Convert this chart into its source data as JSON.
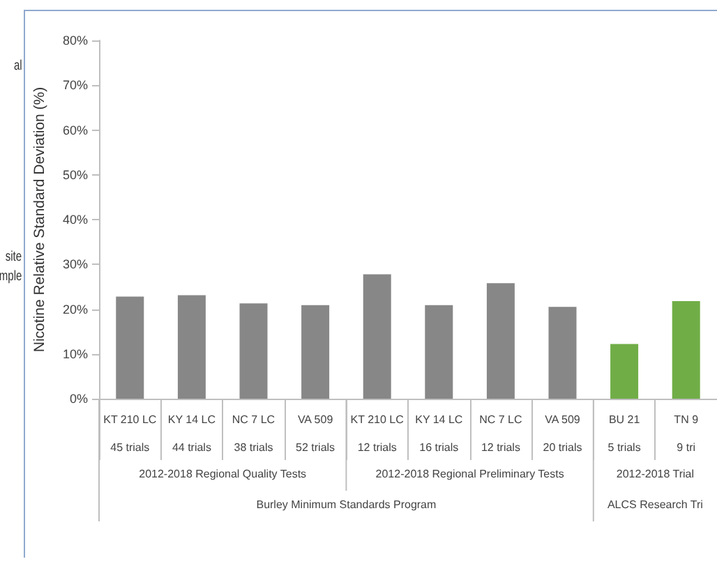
{
  "chart_data": {
    "type": "bar",
    "ylabel": "Nicotine Relative Standard Deviation (%)",
    "categories": [
      "KT 210 LC\n\n45 trials",
      "KY 14 LC\n\n44 trials",
      "NC 7 LC\n\n38 trials",
      "VA 509\n\n52 trials",
      "KT 210 LC\n\n12 trials",
      "KY 14 LC\n\n16 trials",
      "NC 7 LC\n\n12 trials",
      "VA 509\n\n20 trials",
      "BU 21\n\n5 trials",
      "TN 9\n\n9 tri"
    ],
    "values": [
      22.8,
      23.1,
      21.3,
      20.9,
      27.8,
      20.9,
      25.8,
      20.5,
      12.2,
      21.8
    ],
    "colors": [
      "#878787",
      "#878787",
      "#878787",
      "#878787",
      "#878787",
      "#878787",
      "#878787",
      "#878787",
      "#70ad47",
      "#70ad47"
    ],
    "ylim": [
      0,
      80
    ],
    "yticks": [
      {
        "value": 0,
        "label": "0%"
      },
      {
        "value": 10,
        "label": "10%"
      },
      {
        "value": 20,
        "label": "20%"
      },
      {
        "value": 30,
        "label": "30%"
      },
      {
        "value": 40,
        "label": "40%"
      },
      {
        "value": 50,
        "label": "50%"
      },
      {
        "value": 60,
        "label": "60%"
      },
      {
        "value": 70,
        "label": "70%"
      },
      {
        "value": 80,
        "label": "80%"
      }
    ],
    "grid": false,
    "annotations": [
      "2012-2018 Regional Quality Tests",
      "2012-2018 Regional Preliminary Tests",
      "2012-2018 Trial",
      "Burley Minimum Standards Program",
      "ALCS Research Tri",
      "al",
      "site",
      "mple"
    ]
  }
}
